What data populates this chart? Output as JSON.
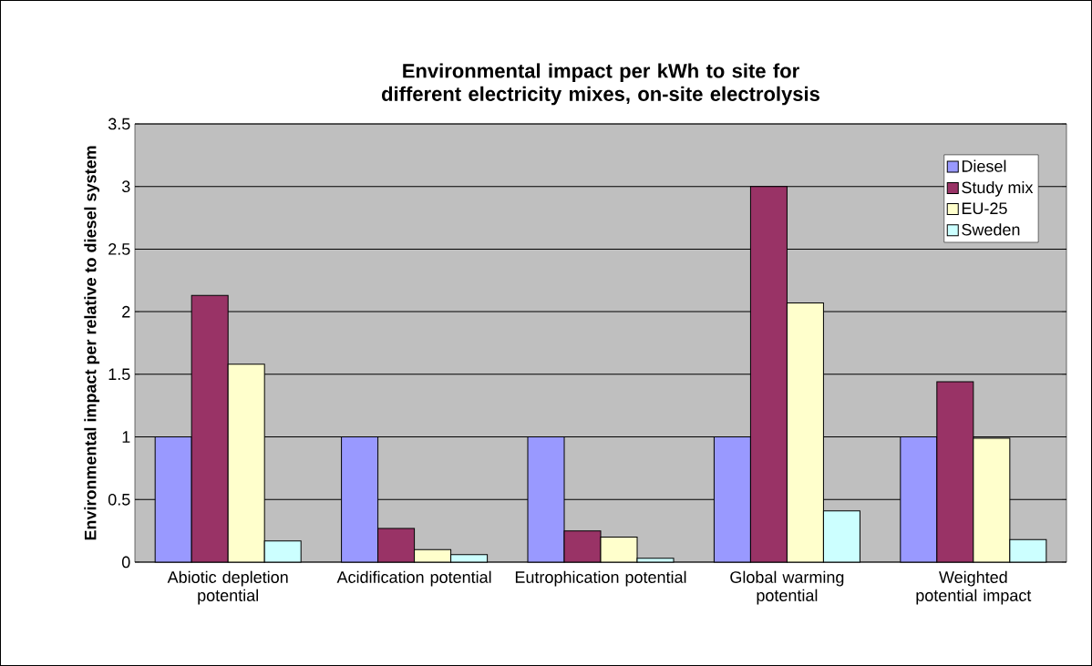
{
  "chart_data": {
    "type": "bar",
    "title": "Environmental impact per kWh to site for different electricity mixes, on-site electrolysis",
    "ylabel": "Environmental impact per relative to diesel system",
    "categories": [
      "Abiotic depletion potential",
      "Acidification potential",
      "Eutrophication potential",
      "Global warming potential",
      "Weighted potential impact"
    ],
    "series": [
      {
        "name": "Diesel",
        "color": "#9999ff",
        "values": [
          1,
          1,
          1,
          1,
          1
        ]
      },
      {
        "name": "Study mix",
        "color": "#993366",
        "values": [
          2.13,
          0.27,
          0.25,
          3.0,
          1.44
        ]
      },
      {
        "name": "EU-25",
        "color": "#ffffcc",
        "values": [
          1.58,
          0.1,
          0.2,
          2.07,
          0.99
        ]
      },
      {
        "name": "Sweden",
        "color": "#ccffff",
        "values": [
          0.17,
          0.06,
          0.03,
          0.41,
          0.18
        ]
      }
    ],
    "ylim": [
      0,
      3.5
    ],
    "yticks": [
      0,
      0.5,
      1,
      1.5,
      2,
      2.5,
      3,
      3.5
    ],
    "grid": "y",
    "legend": "top right"
  }
}
